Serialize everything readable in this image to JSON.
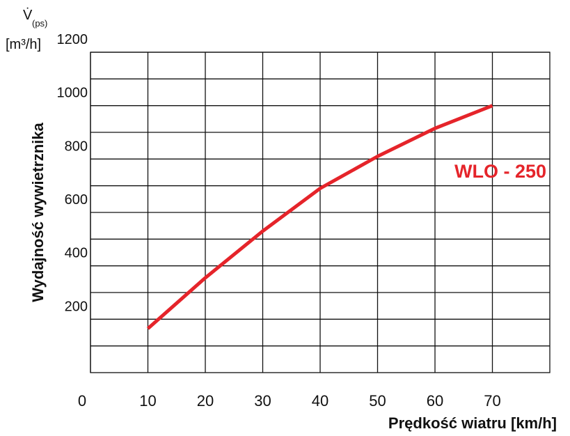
{
  "chart_data": {
    "type": "line",
    "y_axis_label": "Wydajność wywietrznika",
    "y_unit_symbol": "V̇",
    "y_unit_subscript": "(ps)",
    "y_unit": "[m³/h]",
    "x_axis_label": "Prędkość wiatru  [km/h]",
    "x": [
      10,
      20,
      30,
      40,
      50,
      60,
      70
    ],
    "series": [
      {
        "name": "WLO - 250",
        "color": "#e5242a",
        "values": [
          165,
          355,
          530,
          690,
          810,
          915,
          1000
        ]
      }
    ],
    "xlim": [
      0,
      80
    ],
    "xticks": [
      0,
      10,
      20,
      30,
      40,
      50,
      60,
      70
    ],
    "ylim": [
      0,
      1200
    ],
    "yticks": [
      200,
      400,
      600,
      800,
      1000,
      1200
    ],
    "minor_yticks": [
      100,
      300,
      500,
      700,
      900,
      1100
    ],
    "grid": true
  }
}
